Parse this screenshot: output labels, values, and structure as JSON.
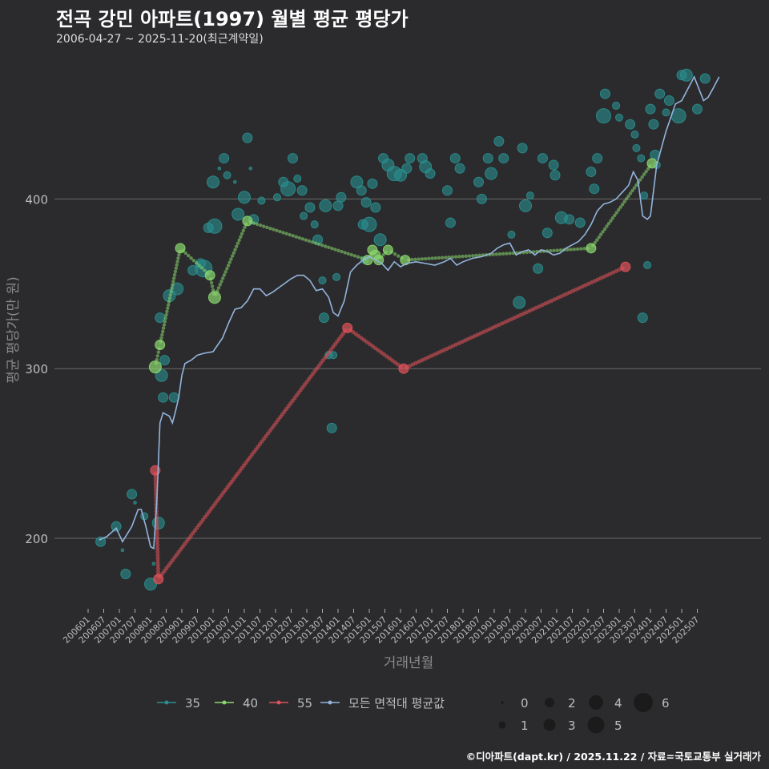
{
  "header": {
    "title": "전곡 강민 아파트(1997) 월별 평균 평당가",
    "subtitle": "2006-04-27 ~ 2025-11-20(최근계약일)"
  },
  "caption": "©디아파트(dapt.kr) / 2025.11.22 / 자료=국토교통부 실거래가",
  "chart_data": {
    "type": "scatter",
    "xlabel": "거래년월",
    "ylabel": "평균 평당가(만 원)",
    "ylim": [
      155,
      485
    ],
    "yticks": [
      200,
      300,
      400
    ],
    "x_tick_labels": [
      "200601",
      "200607",
      "200701",
      "200707",
      "200801",
      "200807",
      "200901",
      "200907",
      "201001",
      "201007",
      "201101",
      "201107",
      "201201",
      "201207",
      "201301",
      "201307",
      "201401",
      "201407",
      "201501",
      "201507",
      "201601",
      "201607",
      "201701",
      "201707",
      "201801",
      "201807",
      "201901",
      "201907",
      "202001",
      "202007",
      "202101",
      "202107",
      "202201",
      "202207",
      "202301",
      "202307",
      "202401",
      "202407",
      "202501",
      "202507"
    ],
    "legend_series_labels": [
      "35",
      "40",
      "55",
      "모든 면적대 평균값"
    ],
    "size_legend_labels": [
      "0",
      "1",
      "2",
      "3",
      "4",
      "5",
      "6"
    ],
    "colors": {
      "35": "#2a8f8f",
      "40": "#8bd86d",
      "55": "#e0525a",
      "avg": "#93b4dd"
    },
    "series": [
      {
        "name": "35",
        "points": [
          [
            2006.4,
            198,
            2
          ],
          [
            2006.9,
            207,
            2
          ],
          [
            2007.1,
            193,
            0
          ],
          [
            2007.2,
            179,
            2
          ],
          [
            2007.4,
            226,
            2
          ],
          [
            2007.5,
            221,
            0
          ],
          [
            2007.8,
            213,
            1
          ],
          [
            2008.0,
            173,
            3
          ],
          [
            2008.1,
            185,
            0
          ],
          [
            2008.25,
            209,
            3
          ],
          [
            2008.3,
            330,
            2
          ],
          [
            2008.35,
            296,
            3
          ],
          [
            2008.4,
            283,
            2
          ],
          [
            2008.45,
            305,
            2
          ],
          [
            2008.6,
            343,
            3
          ],
          [
            2008.75,
            283,
            2
          ],
          [
            2008.85,
            347,
            3
          ],
          [
            2009.35,
            358,
            2
          ],
          [
            2009.6,
            362,
            2
          ],
          [
            2009.7,
            359,
            5
          ],
          [
            2009.85,
            383,
            2
          ],
          [
            2010.0,
            410,
            3
          ],
          [
            2010.05,
            384,
            4
          ],
          [
            2010.2,
            418,
            0
          ],
          [
            2010.35,
            424,
            2
          ],
          [
            2010.45,
            414,
            1
          ],
          [
            2010.7,
            410,
            0
          ],
          [
            2010.8,
            391,
            3
          ],
          [
            2011.0,
            401,
            3
          ],
          [
            2011.1,
            436,
            2
          ],
          [
            2011.2,
            418,
            0
          ],
          [
            2011.3,
            388,
            2
          ],
          [
            2011.55,
            399,
            1
          ],
          [
            2012.05,
            401,
            1
          ],
          [
            2012.25,
            410,
            2
          ],
          [
            2012.4,
            406,
            4
          ],
          [
            2012.55,
            424,
            2
          ],
          [
            2012.7,
            412,
            1
          ],
          [
            2012.85,
            405,
            2
          ],
          [
            2012.9,
            390,
            1
          ],
          [
            2013.1,
            395,
            2
          ],
          [
            2013.25,
            385,
            1
          ],
          [
            2013.35,
            376,
            2
          ],
          [
            2013.5,
            352,
            1
          ],
          [
            2013.55,
            330,
            2
          ],
          [
            2013.6,
            396,
            3
          ],
          [
            2013.7,
            308,
            1
          ],
          [
            2013.8,
            265,
            2
          ],
          [
            2013.85,
            308,
            1
          ],
          [
            2013.95,
            354,
            1
          ],
          [
            2014.0,
            396,
            2
          ],
          [
            2014.1,
            401,
            2
          ],
          [
            2014.6,
            410,
            3
          ],
          [
            2014.75,
            405,
            2
          ],
          [
            2014.8,
            385,
            2
          ],
          [
            2014.85,
            364,
            1
          ],
          [
            2014.9,
            398,
            2
          ],
          [
            2015.0,
            385,
            4
          ],
          [
            2015.1,
            409,
            2
          ],
          [
            2015.2,
            395,
            2
          ],
          [
            2015.35,
            376,
            3
          ],
          [
            2015.45,
            424,
            2
          ],
          [
            2015.6,
            420,
            3
          ],
          [
            2015.8,
            415,
            4
          ],
          [
            2016.0,
            414,
            3
          ],
          [
            2016.2,
            418,
            2
          ],
          [
            2016.3,
            424,
            2
          ],
          [
            2016.7,
            424,
            2
          ],
          [
            2016.8,
            419,
            3
          ],
          [
            2016.95,
            415,
            2
          ],
          [
            2017.5,
            405,
            2
          ],
          [
            2017.6,
            386,
            2
          ],
          [
            2017.75,
            424,
            2
          ],
          [
            2017.9,
            418,
            2
          ],
          [
            2018.5,
            410,
            2
          ],
          [
            2018.6,
            400,
            2
          ],
          [
            2018.8,
            424,
            2
          ],
          [
            2018.9,
            415,
            3
          ],
          [
            2019.15,
            434,
            2
          ],
          [
            2019.3,
            424,
            2
          ],
          [
            2019.55,
            379,
            1
          ],
          [
            2019.8,
            339,
            3
          ],
          [
            2019.9,
            430,
            2
          ],
          [
            2020.0,
            396,
            3
          ],
          [
            2020.15,
            402,
            1
          ],
          [
            2020.4,
            359,
            2
          ],
          [
            2020.55,
            424,
            2
          ],
          [
            2020.7,
            380,
            2
          ],
          [
            2020.9,
            420,
            2
          ],
          [
            2020.95,
            414,
            2
          ],
          [
            2021.15,
            389,
            3
          ],
          [
            2021.4,
            388,
            2
          ],
          [
            2021.75,
            386,
            2
          ],
          [
            2022.1,
            416,
            2
          ],
          [
            2022.2,
            406,
            2
          ],
          [
            2022.3,
            424,
            2
          ],
          [
            2022.5,
            449,
            4
          ],
          [
            2022.55,
            462,
            2
          ],
          [
            2022.9,
            455,
            1
          ],
          [
            2023.0,
            448,
            1
          ],
          [
            2023.35,
            444,
            2
          ],
          [
            2023.5,
            438,
            1
          ],
          [
            2023.55,
            430,
            1
          ],
          [
            2023.7,
            424,
            1
          ],
          [
            2023.75,
            330,
            2
          ],
          [
            2023.8,
            402,
            1
          ],
          [
            2023.9,
            361,
            1
          ],
          [
            2024.0,
            453,
            2
          ],
          [
            2024.1,
            444,
            2
          ],
          [
            2024.15,
            426,
            2
          ],
          [
            2024.2,
            420,
            1
          ],
          [
            2024.3,
            462,
            2
          ],
          [
            2024.5,
            451,
            1
          ],
          [
            2024.6,
            458,
            2
          ],
          [
            2024.9,
            449,
            4
          ],
          [
            2025.0,
            473,
            2
          ],
          [
            2025.15,
            473,
            3
          ],
          [
            2025.5,
            453,
            2
          ],
          [
            2025.75,
            471,
            2
          ]
        ]
      },
      {
        "name": "40",
        "points": [
          [
            2008.15,
            301,
            3
          ],
          [
            2008.3,
            314,
            2
          ],
          [
            2008.95,
            371,
            2
          ],
          [
            2009.9,
            355,
            2
          ],
          [
            2010.05,
            342,
            3
          ],
          [
            2011.1,
            387,
            2
          ],
          [
            2014.95,
            364,
            2
          ],
          [
            2015.1,
            370,
            2
          ],
          [
            2015.2,
            367,
            2
          ],
          [
            2015.3,
            364,
            2
          ],
          [
            2015.6,
            370,
            2
          ],
          [
            2016.15,
            364,
            2
          ],
          [
            2022.1,
            371,
            2
          ],
          [
            2024.05,
            421,
            2
          ]
        ]
      },
      {
        "name": "55",
        "points": [
          [
            2008.15,
            240,
            2
          ],
          [
            2008.25,
            176,
            2
          ],
          [
            2014.3,
            324,
            2
          ],
          [
            2016.1,
            300,
            2
          ],
          [
            2023.2,
            360,
            2
          ]
        ]
      },
      {
        "name": "모든 면적대 평균값",
        "line": [
          [
            2006.35,
            199
          ],
          [
            2006.6,
            201
          ],
          [
            2006.9,
            206
          ],
          [
            2007.1,
            198
          ],
          [
            2007.4,
            207
          ],
          [
            2007.6,
            217
          ],
          [
            2007.7,
            217
          ],
          [
            2007.85,
            207
          ],
          [
            2008.0,
            195
          ],
          [
            2008.1,
            194
          ],
          [
            2008.2,
            222
          ],
          [
            2008.3,
            268
          ],
          [
            2008.4,
            274
          ],
          [
            2008.5,
            273
          ],
          [
            2008.6,
            272
          ],
          [
            2008.7,
            268
          ],
          [
            2008.8,
            275
          ],
          [
            2008.9,
            283
          ],
          [
            2009.0,
            296
          ],
          [
            2009.1,
            303
          ],
          [
            2009.3,
            305
          ],
          [
            2009.5,
            308
          ],
          [
            2009.7,
            309
          ],
          [
            2010.0,
            310
          ],
          [
            2010.3,
            318
          ],
          [
            2010.5,
            327
          ],
          [
            2010.7,
            335
          ],
          [
            2010.9,
            336
          ],
          [
            2011.1,
            340
          ],
          [
            2011.3,
            347
          ],
          [
            2011.5,
            347
          ],
          [
            2011.7,
            343
          ],
          [
            2011.9,
            345
          ],
          [
            2012.2,
            349
          ],
          [
            2012.5,
            353
          ],
          [
            2012.7,
            355
          ],
          [
            2012.9,
            355
          ],
          [
            2013.1,
            352
          ],
          [
            2013.3,
            346
          ],
          [
            2013.5,
            347
          ],
          [
            2013.7,
            342
          ],
          [
            2013.85,
            333
          ],
          [
            2014.0,
            331
          ],
          [
            2014.2,
            340
          ],
          [
            2014.4,
            357
          ],
          [
            2014.6,
            361
          ],
          [
            2014.8,
            364
          ],
          [
            2015.0,
            366
          ],
          [
            2015.2,
            364
          ],
          [
            2015.4,
            362
          ],
          [
            2015.6,
            358
          ],
          [
            2015.8,
            363
          ],
          [
            2016.0,
            360
          ],
          [
            2016.2,
            362
          ],
          [
            2016.5,
            363
          ],
          [
            2016.8,
            362
          ],
          [
            2017.1,
            361
          ],
          [
            2017.4,
            363
          ],
          [
            2017.6,
            365
          ],
          [
            2017.8,
            361
          ],
          [
            2018.0,
            363
          ],
          [
            2018.3,
            365
          ],
          [
            2018.6,
            366
          ],
          [
            2018.9,
            368
          ],
          [
            2019.1,
            371
          ],
          [
            2019.3,
            373
          ],
          [
            2019.5,
            374
          ],
          [
            2019.7,
            367
          ],
          [
            2019.9,
            369
          ],
          [
            2020.1,
            370
          ],
          [
            2020.3,
            367
          ],
          [
            2020.5,
            370
          ],
          [
            2020.7,
            369
          ],
          [
            2020.9,
            367
          ],
          [
            2021.1,
            368
          ],
          [
            2021.3,
            371
          ],
          [
            2021.5,
            373
          ],
          [
            2021.7,
            375
          ],
          [
            2021.9,
            379
          ],
          [
            2022.1,
            385
          ],
          [
            2022.3,
            393
          ],
          [
            2022.5,
            397
          ],
          [
            2022.7,
            398
          ],
          [
            2022.9,
            400
          ],
          [
            2023.1,
            404
          ],
          [
            2023.3,
            408
          ],
          [
            2023.45,
            416
          ],
          [
            2023.6,
            411
          ],
          [
            2023.75,
            390
          ],
          [
            2023.9,
            388
          ],
          [
            2024.0,
            390
          ],
          [
            2024.2,
            420
          ],
          [
            2024.5,
            440
          ],
          [
            2024.8,
            456
          ],
          [
            2025.0,
            458
          ],
          [
            2025.2,
            465
          ],
          [
            2025.4,
            472
          ],
          [
            2025.55,
            465
          ],
          [
            2025.7,
            458
          ],
          [
            2025.85,
            460
          ],
          [
            2026.0,
            465
          ],
          [
            2026.2,
            472
          ]
        ]
      }
    ]
  }
}
